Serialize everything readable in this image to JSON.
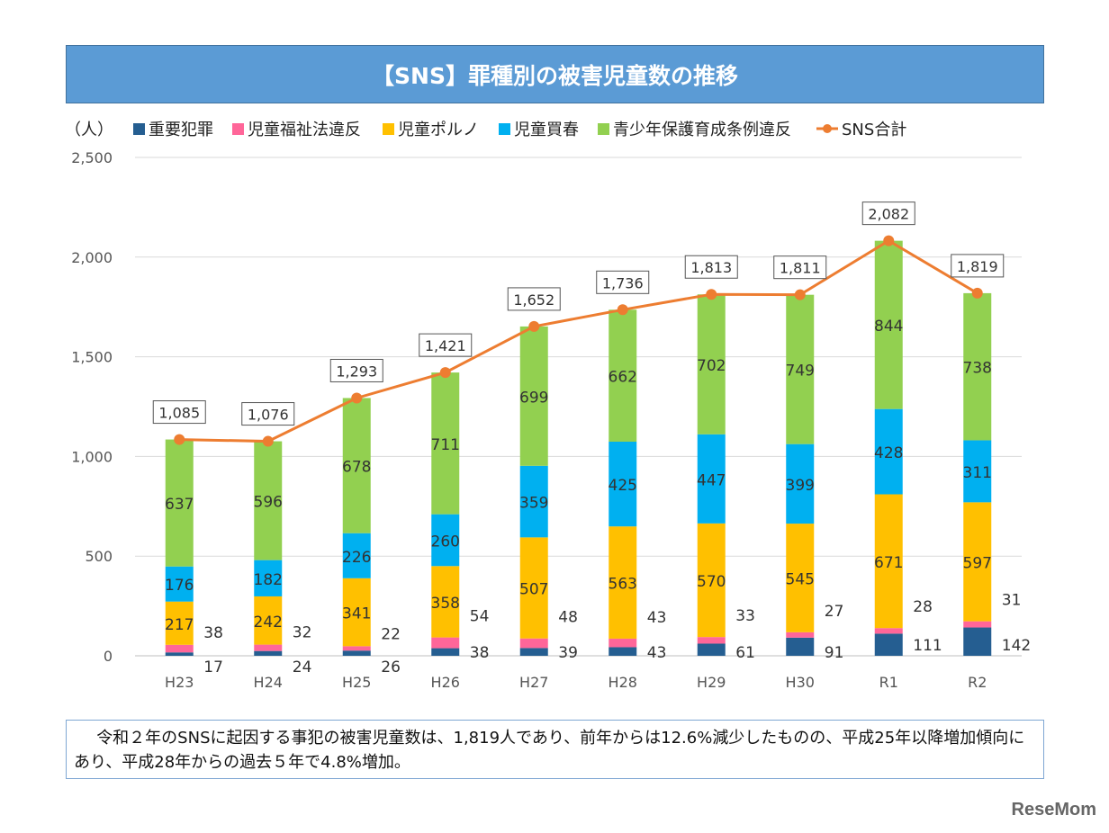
{
  "chart_data": {
    "type": "bar",
    "stacked": true,
    "title": "【SNS】罪種別の被害児童数の推移",
    "ylabel": "（人）",
    "ylim": [
      0,
      2500
    ],
    "yticks": [
      "0",
      "500",
      "1,000",
      "1,500",
      "2,000",
      "2,500"
    ],
    "grid": true,
    "legend_position": "top",
    "categories": [
      "H23",
      "H24",
      "H25",
      "H26",
      "H27",
      "H28",
      "H29",
      "H30",
      "R1",
      "R2"
    ],
    "series": [
      {
        "name": "重要犯罪",
        "color": "#255e91",
        "values": [
          17,
          24,
          26,
          38,
          39,
          43,
          61,
          91,
          111,
          142
        ]
      },
      {
        "name": "児童福祉法違反",
        "color": "#ff6699",
        "values": [
          38,
          32,
          22,
          54,
          48,
          43,
          33,
          27,
          28,
          31
        ]
      },
      {
        "name": "児童ポルノ",
        "color": "#ffc000",
        "values": [
          217,
          242,
          341,
          358,
          507,
          563,
          570,
          545,
          671,
          597
        ]
      },
      {
        "name": "児童買春",
        "color": "#00b0f0",
        "values": [
          176,
          182,
          226,
          260,
          359,
          425,
          447,
          399,
          428,
          311
        ]
      },
      {
        "name": "青少年保護育成条例違反",
        "color": "#92d050",
        "values": [
          637,
          596,
          678,
          711,
          699,
          662,
          702,
          749,
          844,
          738
        ]
      }
    ],
    "line": {
      "name": "SNS合計",
      "color": "#ed7d31",
      "values": [
        1085,
        1076,
        1293,
        1421,
        1652,
        1736,
        1813,
        1811,
        2082,
        1819
      ],
      "labels": [
        "1,085",
        "1,076",
        "1,293",
        "1,421",
        "1,652",
        "1,736",
        "1,813",
        "1,811",
        "2,082",
        "1,819"
      ]
    }
  },
  "note": "令和２年のSNSに起因する事犯の被害児童数は、1,819人であり、前年からは12.6%減少したものの、平成25年以降増加傾向にあり、平成28年からの過去５年で4.8%増加。",
  "logo": "ReseMom"
}
